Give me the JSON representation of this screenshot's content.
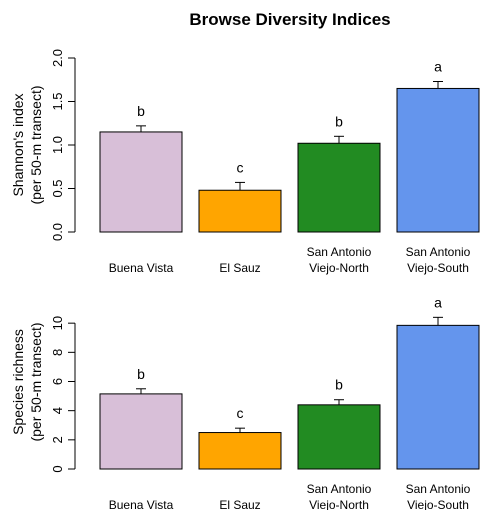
{
  "title": "Browse Diversity Indices",
  "charts": [
    {
      "ylabel_line1": "Shannon's index",
      "ylabel_line2": "(per 50-m transect)"
    },
    {
      "ylabel_line1": "Species richness",
      "ylabel_line2": "(per 50-m transect)"
    }
  ],
  "chart_data": [
    {
      "type": "bar",
      "title": "Browse Diversity Indices",
      "ylabel": "Shannon's index (per 50-m transect)",
      "xlabel": "",
      "categories": [
        "Buena Vista",
        "El Sauz",
        "San Antonio Viejo-North",
        "San Antonio Viejo-South"
      ],
      "category_lines": [
        [
          "Buena Vista"
        ],
        [
          "El Sauz"
        ],
        [
          "San Antonio",
          "Viejo-North"
        ],
        [
          "San Antonio",
          "Viejo-South"
        ]
      ],
      "values": [
        1.15,
        0.48,
        1.02,
        1.65
      ],
      "error": [
        0.07,
        0.09,
        0.08,
        0.08
      ],
      "letters": [
        "b",
        "c",
        "b",
        "a"
      ],
      "colors": [
        "#d8bfd8",
        "#ffa500",
        "#228b22",
        "#6495ed"
      ],
      "ylim": [
        0,
        2.0
      ],
      "yticks": [
        "0.0",
        "0.5",
        "1.0",
        "1.5",
        "2.0"
      ],
      "grid": false
    },
    {
      "type": "bar",
      "title": "",
      "ylabel": "Species richness (per 50-m transect)",
      "xlabel": "",
      "categories": [
        "Buena Vista",
        "El Sauz",
        "San Antonio Viejo-North",
        "San Antonio Viejo-South"
      ],
      "category_lines": [
        [
          "Buena Vista"
        ],
        [
          "El Sauz"
        ],
        [
          "San Antonio",
          "Viejo-North"
        ],
        [
          "San Antonio",
          "Viejo-South"
        ]
      ],
      "values": [
        5.15,
        2.5,
        4.4,
        9.85
      ],
      "error": [
        0.35,
        0.3,
        0.35,
        0.55
      ],
      "letters": [
        "b",
        "c",
        "b",
        "a"
      ],
      "colors": [
        "#d8bfd8",
        "#ffa500",
        "#228b22",
        "#6495ed"
      ],
      "ylim": [
        0,
        12
      ],
      "yticks": [
        "0",
        "2",
        "4",
        "6",
        "8",
        "10"
      ],
      "grid": false
    }
  ]
}
